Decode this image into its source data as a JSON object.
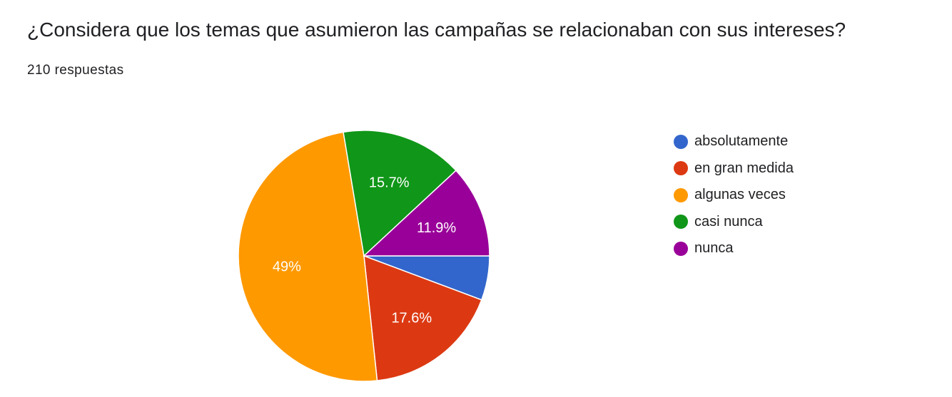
{
  "question": {
    "title": "¿Considera que los temas que asumieron las campañas se relacionaban con sus intereses?",
    "responses": "210 respuestas"
  },
  "chart_data": {
    "type": "pie",
    "title": "",
    "legend_position": "right",
    "slices": [
      {
        "name": "absolutamente",
        "value": 5.7,
        "label": "",
        "color": "#3366cc"
      },
      {
        "name": "en gran medida",
        "value": 17.6,
        "label": "17.6%",
        "color": "#dc3912"
      },
      {
        "name": "algunas veces",
        "value": 49,
        "label": "49%",
        "color": "#ff9900"
      },
      {
        "name": "casi nunca",
        "value": 15.7,
        "label": "15.7%",
        "color": "#109618"
      },
      {
        "name": "nunca",
        "value": 11.9,
        "label": "11.9%",
        "color": "#990099"
      }
    ]
  }
}
